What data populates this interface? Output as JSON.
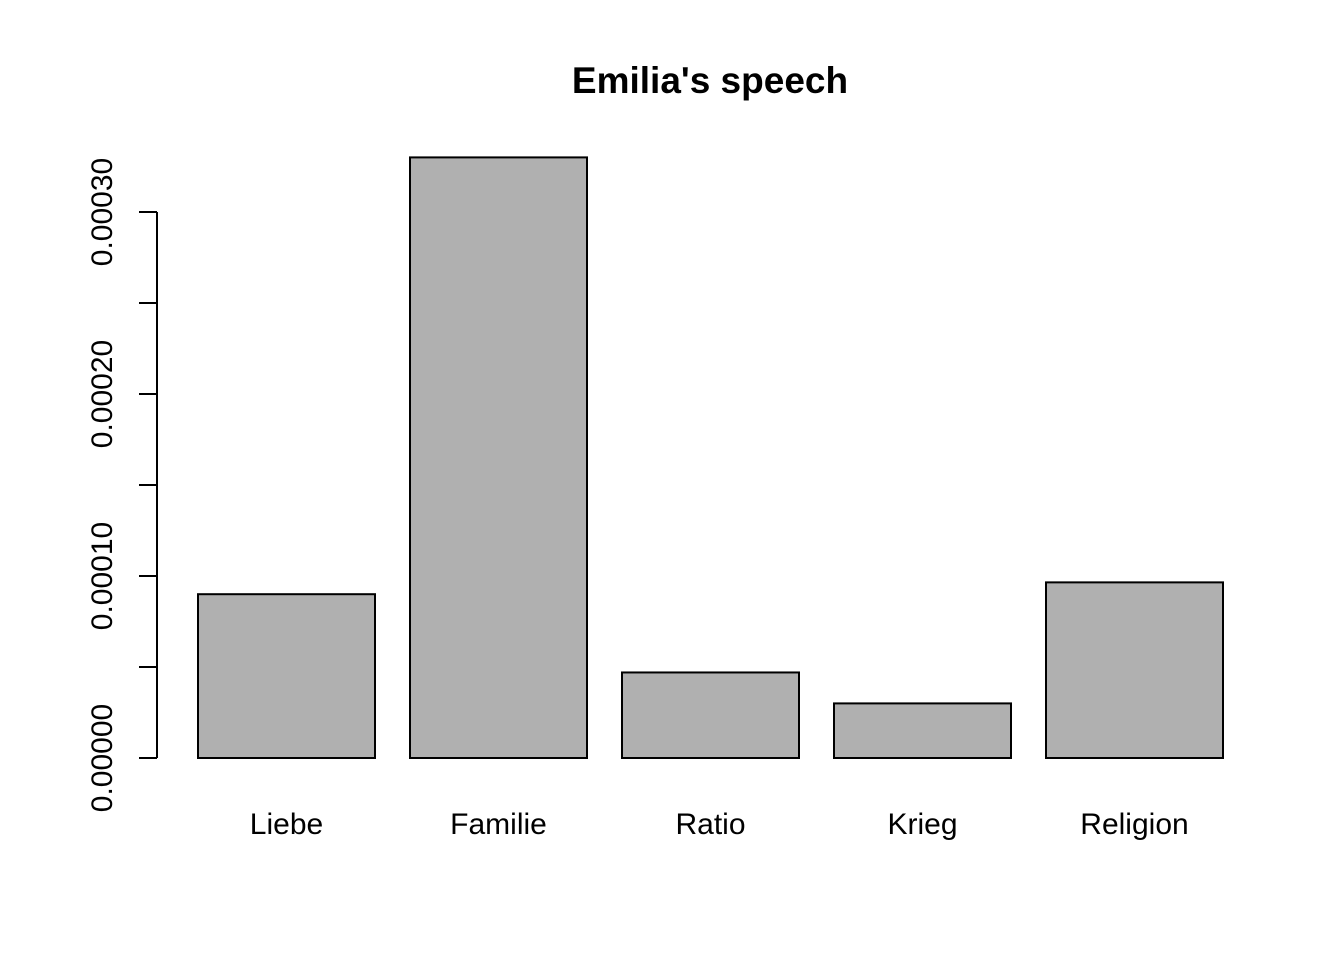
{
  "chart_data": {
    "type": "bar",
    "title": "Emilia's speech",
    "xlabel": "",
    "ylabel": "",
    "categories": [
      "Liebe",
      "Familie",
      "Ratio",
      "Krieg",
      "Religion"
    ],
    "values": [
      9e-05,
      0.00033,
      4.7e-05,
      3e-05,
      9.65e-05
    ],
    "ylim": [
      0,
      0.00033
    ],
    "yticks": [
      0,
      5e-05,
      0.0001,
      0.00015,
      0.0002,
      0.00025,
      0.0003
    ],
    "ytick_labels": [
      "0.00000",
      "",
      "0.00010",
      "",
      "0.00020",
      "",
      "0.00030"
    ],
    "bar_color": "#b0b0b0",
    "grid": false,
    "legend": "none"
  }
}
